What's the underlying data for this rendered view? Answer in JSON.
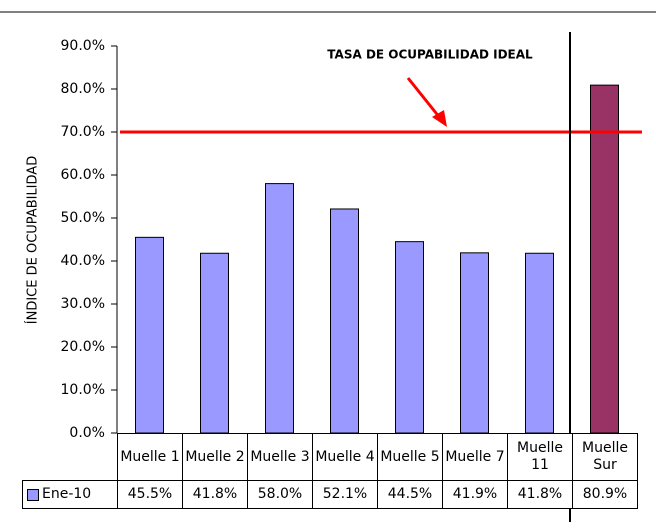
{
  "chart_data": {
    "type": "bar",
    "y_axis_label": "ÍNDICE DE OCUPABILIDAD",
    "categories": [
      "Muelle 1",
      "Muelle 2",
      "Muelle 3",
      "Muelle 4",
      "Muelle 5",
      "Muelle 7",
      "Muelle 11",
      "Muelle Sur"
    ],
    "series": [
      {
        "name": "Ene-10",
        "color": "#9999ff",
        "colors": [
          "#9999ff",
          "#9999ff",
          "#9999ff",
          "#9999ff",
          "#9999ff",
          "#9999ff",
          "#9999ff",
          "#993366"
        ],
        "values": [
          45.5,
          41.8,
          58.0,
          52.1,
          44.5,
          41.9,
          41.8,
          80.9
        ],
        "value_labels": [
          "45.5%",
          "41.8%",
          "58.0%",
          "52.1%",
          "44.5%",
          "41.9%",
          "41.8%",
          "80.9%"
        ]
      }
    ],
    "ylim": [
      0,
      90
    ],
    "yticks": [
      {
        "value": 0,
        "label": "0.0%"
      },
      {
        "value": 10,
        "label": "10.0%"
      },
      {
        "value": 20,
        "label": "20.0%"
      },
      {
        "value": 30,
        "label": "30.0%"
      },
      {
        "value": 40,
        "label": "40.0%"
      },
      {
        "value": 50,
        "label": "50.0%"
      },
      {
        "value": 60,
        "label": "60.0%"
      },
      {
        "value": 70,
        "label": "70.0%"
      },
      {
        "value": 80,
        "label": "80.0%"
      },
      {
        "value": 90,
        "label": "90.0%"
      }
    ],
    "reference_line": {
      "value": 70,
      "label": "TASA DE OCUPABILIDAD IDEAL",
      "color": "#ff0000"
    }
  }
}
